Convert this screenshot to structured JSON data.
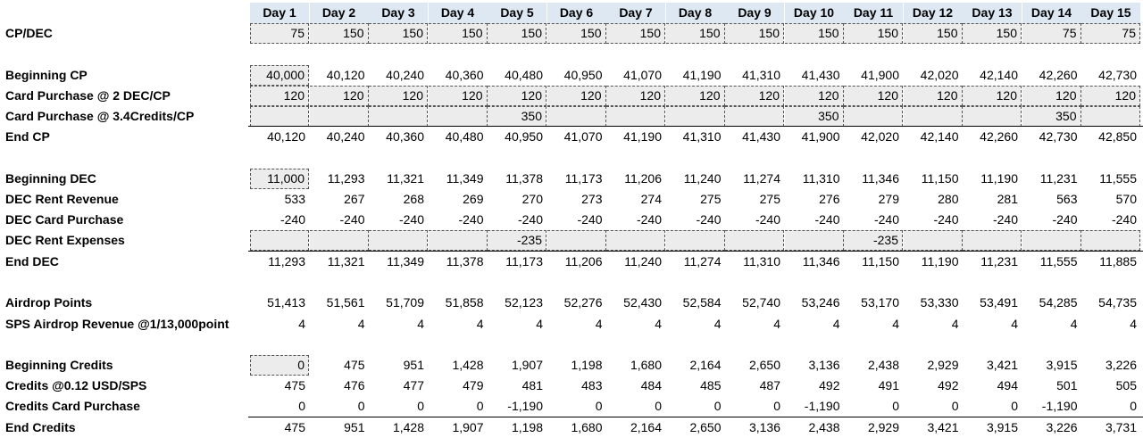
{
  "header": {
    "days": [
      "Day 1",
      "Day 2",
      "Day 3",
      "Day 4",
      "Day 5",
      "Day 6",
      "Day 7",
      "Day 8",
      "Day 9",
      "Day 10",
      "Day 11",
      "Day 12",
      "Day 13",
      "Day 14",
      "Day 15"
    ]
  },
  "rows": [
    {
      "label": "CP/DEC",
      "values": [
        "75",
        "150",
        "150",
        "150",
        "150",
        "150",
        "150",
        "150",
        "150",
        "150",
        "150",
        "150",
        "150",
        "75",
        "75"
      ]
    },
    {
      "label": "Beginning CP",
      "values": [
        "40,000",
        "40,120",
        "40,240",
        "40,360",
        "40,480",
        "40,950",
        "41,070",
        "41,190",
        "41,310",
        "41,430",
        "41,900",
        "42,020",
        "42,140",
        "42,260",
        "42,730"
      ]
    },
    {
      "label": "Card Purchase @ 2 DEC/CP",
      "values": [
        "120",
        "120",
        "120",
        "120",
        "120",
        "120",
        "120",
        "120",
        "120",
        "120",
        "120",
        "120",
        "120",
        "120",
        "120"
      ]
    },
    {
      "label": "Card Purchase @ 3.4Credits/CP",
      "values": [
        "",
        "",
        "",
        "",
        "350",
        "",
        "",
        "",
        "",
        "350",
        "",
        "",
        "",
        "350",
        ""
      ]
    },
    {
      "label": "End CP",
      "values": [
        "40,120",
        "40,240",
        "40,360",
        "40,480",
        "40,950",
        "41,070",
        "41,190",
        "41,310",
        "41,430",
        "41,900",
        "42,020",
        "42,140",
        "42,260",
        "42,730",
        "42,850"
      ]
    },
    {
      "label": "Beginning DEC",
      "values": [
        "11,000",
        "11,293",
        "11,321",
        "11,349",
        "11,378",
        "11,173",
        "11,206",
        "11,240",
        "11,274",
        "11,310",
        "11,346",
        "11,150",
        "11,190",
        "11,231",
        "11,555"
      ]
    },
    {
      "label": "DEC Rent Revenue",
      "values": [
        "533",
        "267",
        "268",
        "269",
        "270",
        "273",
        "274",
        "275",
        "275",
        "276",
        "279",
        "280",
        "281",
        "563",
        "570"
      ]
    },
    {
      "label": "DEC Card Purchase",
      "values": [
        "-240",
        "-240",
        "-240",
        "-240",
        "-240",
        "-240",
        "-240",
        "-240",
        "-240",
        "-240",
        "-240",
        "-240",
        "-240",
        "-240",
        "-240"
      ]
    },
    {
      "label": "DEC Rent Expenses",
      "values": [
        "",
        "",
        "",
        "",
        "-235",
        "",
        "",
        "",
        "",
        "",
        "-235",
        "",
        "",
        "",
        ""
      ]
    },
    {
      "label": "End DEC",
      "values": [
        "11,293",
        "11,321",
        "11,349",
        "11,378",
        "11,173",
        "11,206",
        "11,240",
        "11,274",
        "11,310",
        "11,346",
        "11,150",
        "11,190",
        "11,231",
        "11,555",
        "11,885"
      ]
    },
    {
      "label": "Airdrop Points",
      "values": [
        "51,413",
        "51,561",
        "51,709",
        "51,858",
        "52,123",
        "52,276",
        "52,430",
        "52,584",
        "52,740",
        "53,246",
        "53,170",
        "53,330",
        "53,491",
        "54,285",
        "54,735"
      ]
    },
    {
      "label": "SPS Airdrop Revenue @1/13,000point",
      "values": [
        "4",
        "4",
        "4",
        "4",
        "4",
        "4",
        "4",
        "4",
        "4",
        "4",
        "4",
        "4",
        "4",
        "4",
        "4"
      ]
    },
    {
      "label": "Beginning Credits",
      "values": [
        "0",
        "475",
        "951",
        "1,428",
        "1,907",
        "1,198",
        "1,680",
        "2,164",
        "2,650",
        "3,136",
        "2,438",
        "2,929",
        "3,421",
        "3,915",
        "3,226"
      ]
    },
    {
      "label": "Credits @0.12 USD/SPS",
      "values": [
        "475",
        "476",
        "477",
        "479",
        "481",
        "483",
        "484",
        "485",
        "487",
        "492",
        "491",
        "492",
        "494",
        "501",
        "505"
      ]
    },
    {
      "label": "Credits Card Purchase",
      "values": [
        "0",
        "0",
        "0",
        "0",
        "-1,190",
        "0",
        "0",
        "0",
        "0",
        "-1,190",
        "0",
        "0",
        "0",
        "-1,190",
        "0"
      ]
    },
    {
      "label": "End Credits",
      "values": [
        "475",
        "951",
        "1,428",
        "1,907",
        "1,198",
        "1,680",
        "2,164",
        "2,650",
        "3,136",
        "2,438",
        "2,929",
        "3,421",
        "3,915",
        "3,226",
        "3,731"
      ]
    }
  ]
}
